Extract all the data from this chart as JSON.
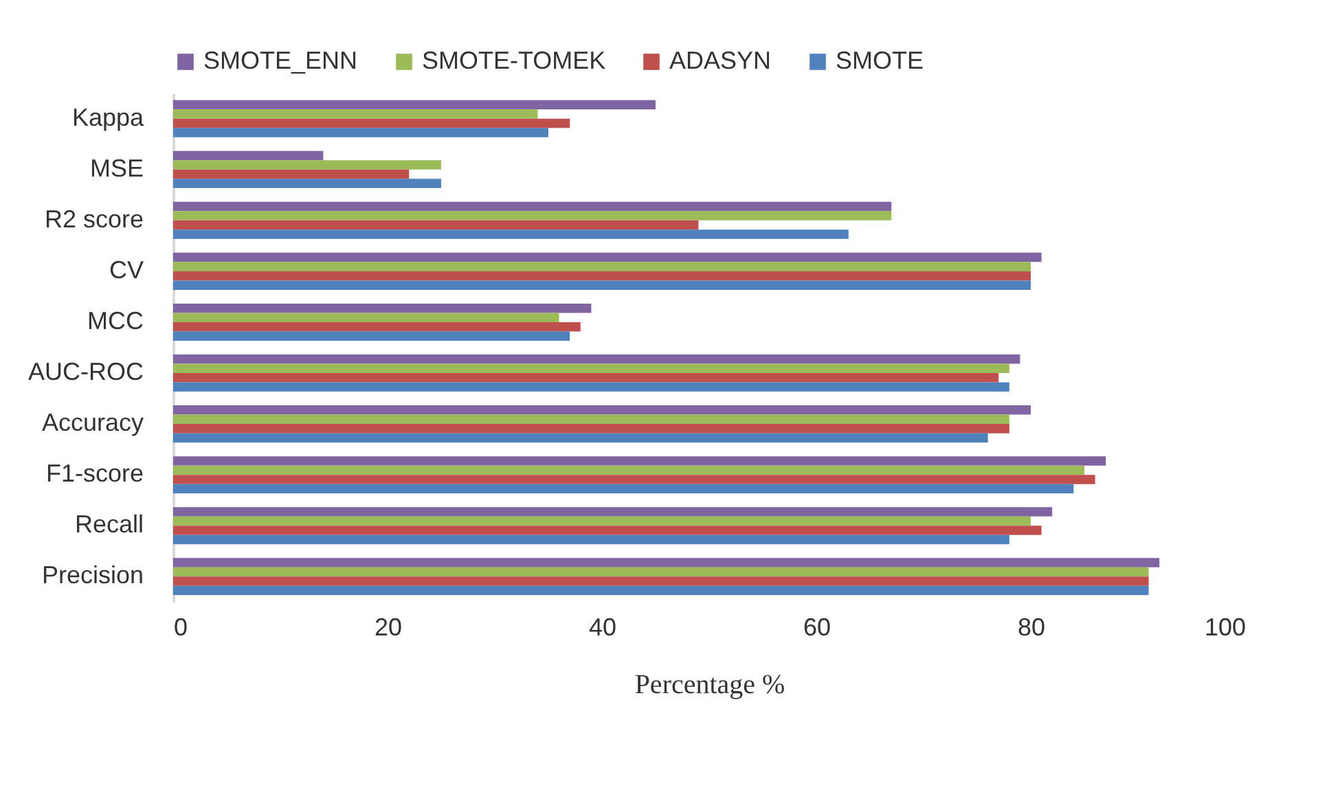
{
  "chart_data": {
    "type": "bar",
    "orientation": "horizontal",
    "categories": [
      "Kappa",
      "MSE",
      "R2 score",
      "CV",
      "MCC",
      "AUC-ROC",
      "Accuracy",
      "F1-score",
      "Recall",
      "Precision"
    ],
    "series": [
      {
        "name": "SMOTE_ENN",
        "color": "#8064a2",
        "values": [
          45,
          14,
          67,
          81,
          39,
          79,
          80,
          87,
          82,
          92
        ]
      },
      {
        "name": "SMOTE-TOMEK",
        "color": "#9bbb59",
        "values": [
          34,
          25,
          67,
          80,
          36,
          78,
          78,
          85,
          80,
          91
        ]
      },
      {
        "name": "ADASYN",
        "color": "#c0504d",
        "values": [
          37,
          22,
          49,
          80,
          38,
          77,
          78,
          86,
          81,
          91
        ]
      },
      {
        "name": "SMOTE",
        "color": "#4f81bd",
        "values": [
          35,
          25,
          63,
          80,
          37,
          78,
          76,
          84,
          78,
          91
        ]
      }
    ],
    "xlabel": "Percentage %",
    "xlim": [
      0,
      100
    ],
    "xticks": [
      0,
      20,
      40,
      60,
      80,
      100
    ],
    "legend": "top",
    "grid": false
  }
}
